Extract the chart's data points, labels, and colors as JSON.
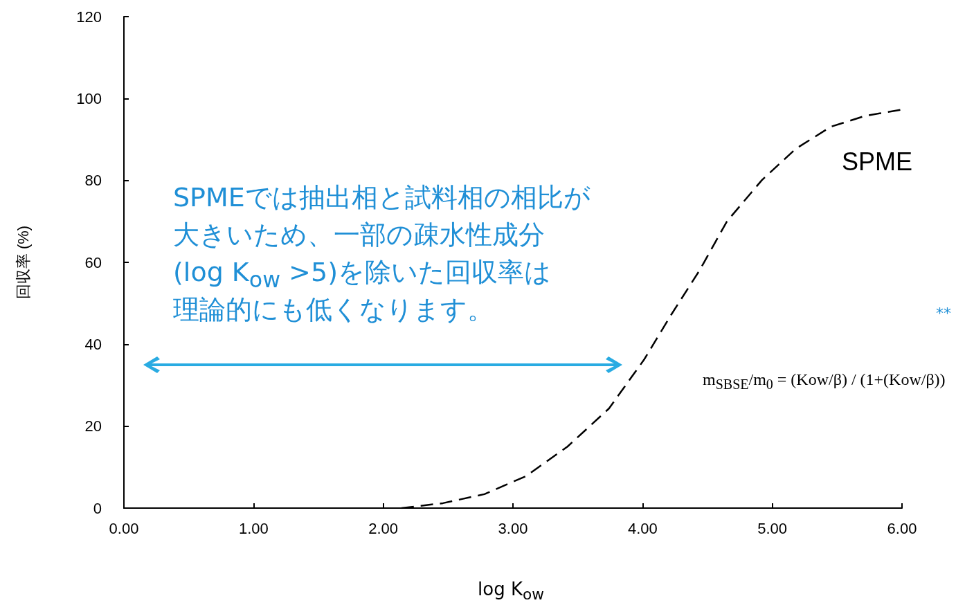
{
  "chart_data": {
    "type": "line",
    "xlabel": "log K$_{ow}$",
    "ylabel": "回収率 (%)",
    "series": [
      {
        "name": "SPME",
        "color": "#000000",
        "x": [
          2.14,
          2.46,
          2.78,
          3.1,
          3.42,
          3.74,
          4.01,
          4.22,
          4.44,
          4.65,
          4.92,
          5.18,
          5.45,
          5.72,
          6
        ],
        "values": [
          0,
          1.2,
          3.4,
          7.8,
          15,
          24.3,
          36.2,
          47.2,
          58.1,
          70,
          80.1,
          87.7,
          93.1,
          95.8,
          97.3
        ]
      }
    ],
    "xlim": [
      0,
      6
    ],
    "xticks": [
      {
        "value": 0,
        "label": "0.00"
      },
      {
        "value": 1,
        "label": "1.00"
      },
      {
        "value": 2,
        "label": "2.00"
      },
      {
        "value": 3,
        "label": "3.00"
      },
      {
        "value": 4,
        "label": "4.00"
      },
      {
        "value": 5,
        "label": "5.00"
      },
      {
        "value": 6,
        "label": "6.00"
      }
    ],
    "ylim": [
      0,
      120
    ],
    "yticks": [
      0,
      20,
      40,
      60,
      80,
      100,
      120
    ],
    "grid": false,
    "legend": false,
    "marker": "none",
    "line_style": "dashed",
    "annotations": [
      "SPMEでは抽出相と試料相の相比が",
      "大きいため、一部の疎水性成分",
      "(log K$_{ow}$ >5)を除いた回収率は",
      "理論的にも低くなります。",
      "m$_{SBSE}$/m$_{0}$ = (Kow/β) / (1+(Kow/β))",
      "**"
    ]
  }
}
